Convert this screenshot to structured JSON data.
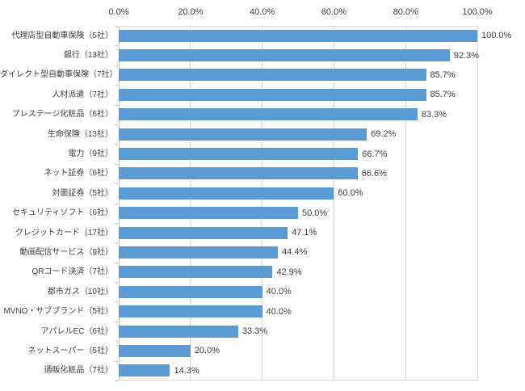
{
  "chart_data": {
    "type": "bar",
    "orientation": "horizontal",
    "title": "",
    "xlabel": "",
    "ylabel": "",
    "legend": false,
    "grid": true,
    "categories": [
      "代理店型自動車保険（5社）",
      "銀行（13社）",
      "ダイレクト型自動車保険（7社）",
      "人材派遣（7社）",
      "プレステージ化粧品（6社）",
      "生命保険（13社）",
      "電力（9社）",
      "ネット証券（6社）",
      "対面証券（5社）",
      "セキュリティソフト（6社）",
      "クレジットカード（17社）",
      "動画配信サービス（9社）",
      "QRコード決済（7社）",
      "都市ガス（10社）",
      "MVNO・サブブランド（5社）",
      "アパレルEC（6社）",
      "ネットスーパー（5社）",
      "通販化粧品（7社）"
    ],
    "values": [
      100.0,
      92.3,
      85.7,
      85.7,
      83.3,
      69.2,
      66.7,
      66.6,
      60.0,
      50.0,
      47.1,
      44.4,
      42.9,
      40.0,
      40.0,
      33.3,
      20.0,
      14.3
    ],
    "data_labels": [
      "100.0%",
      "92.3%",
      "85.7%",
      "85.7%",
      "83.3%",
      "69.2%",
      "66.7%",
      "66.6%",
      "60.0%",
      "50.0%",
      "47.1%",
      "44.4%",
      "42.9%",
      "40.0%",
      "40.0%",
      "33.3%",
      "20.0%",
      "14.3%"
    ],
    "x_axis": {
      "position": "top",
      "min": 0,
      "max": 100,
      "tick_labels": [
        "0.0%",
        "20.0%",
        "40.0%",
        "60.0%",
        "80.0%",
        "100.0%"
      ]
    },
    "colors": {
      "bar": "#5B9BD5",
      "gridline": "#D9D9D9",
      "axis_line": "#BFBFBF",
      "text": "#404040",
      "background": "#FFFFFF"
    }
  }
}
